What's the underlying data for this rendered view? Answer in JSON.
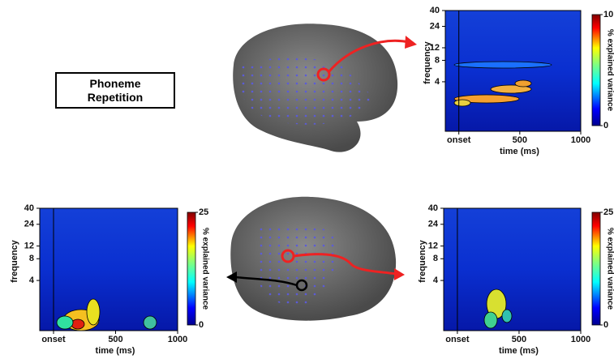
{
  "label": "Phoneme Repetition",
  "panels": [
    {
      "ylabel": "frequency",
      "xlabel": "time (ms)",
      "yticks": [
        40,
        24,
        12,
        8,
        4
      ],
      "xticks": [
        "onset",
        500,
        1000
      ],
      "colorbar_label": "% explained variance",
      "colorbar_ticks": [
        10,
        0
      ]
    },
    {
      "ylabel": "frequency",
      "xlabel": "time (ms)",
      "yticks": [
        40,
        24,
        12,
        8,
        4
      ],
      "xticks": [
        "onset",
        500,
        1000
      ],
      "colorbar_label": "% explained variance",
      "colorbar_ticks": [
        25,
        0
      ]
    },
    {
      "ylabel": "frequency",
      "xlabel": "time (ms)",
      "yticks": [
        40,
        24,
        12,
        8,
        4
      ],
      "xticks": [
        "onset",
        500,
        1000
      ],
      "colorbar_label": "% explained variance",
      "colorbar_ticks": [
        25,
        0
      ]
    }
  ]
}
